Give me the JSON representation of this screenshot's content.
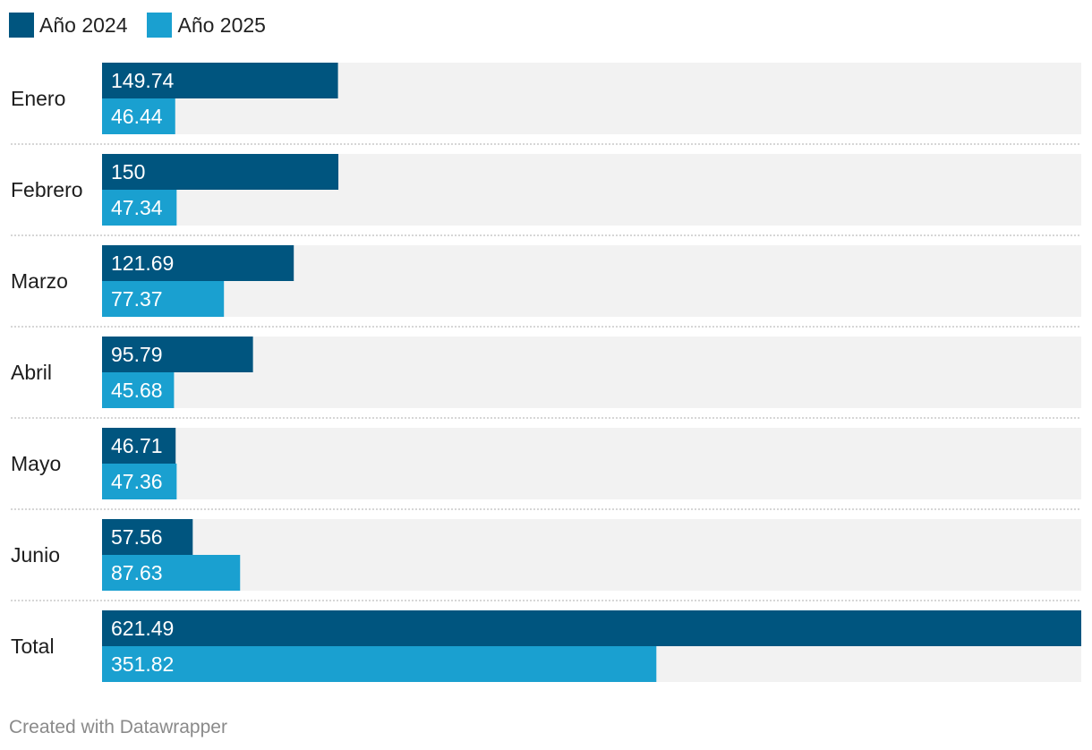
{
  "chart_data": {
    "type": "bar",
    "orientation": "horizontal",
    "grouped": true,
    "categories": [
      "Enero",
      "Febrero",
      "Marzo",
      "Abril",
      "Mayo",
      "Junio",
      "Total"
    ],
    "series": [
      {
        "name": "Año 2024",
        "color": "#00557f",
        "values": [
          149.74,
          150,
          121.69,
          95.79,
          46.71,
          57.56,
          621.49
        ],
        "labels": [
          "149.74",
          "150",
          "121.69",
          "95.79",
          "46.71",
          "57.56",
          "621.49"
        ]
      },
      {
        "name": "Año 2025",
        "color": "#1aa0d0",
        "values": [
          46.44,
          47.34,
          77.37,
          45.68,
          47.36,
          87.63,
          351.82
        ],
        "labels": [
          "46.44",
          "47.34",
          "77.37",
          "45.68",
          "47.36",
          "87.63",
          "351.82"
        ]
      }
    ],
    "xlim": [
      0,
      621.49
    ],
    "background_bar_color": "#f2f2f2",
    "legend_position": "top-left",
    "grid": false
  },
  "footer": "Created with Datawrapper"
}
